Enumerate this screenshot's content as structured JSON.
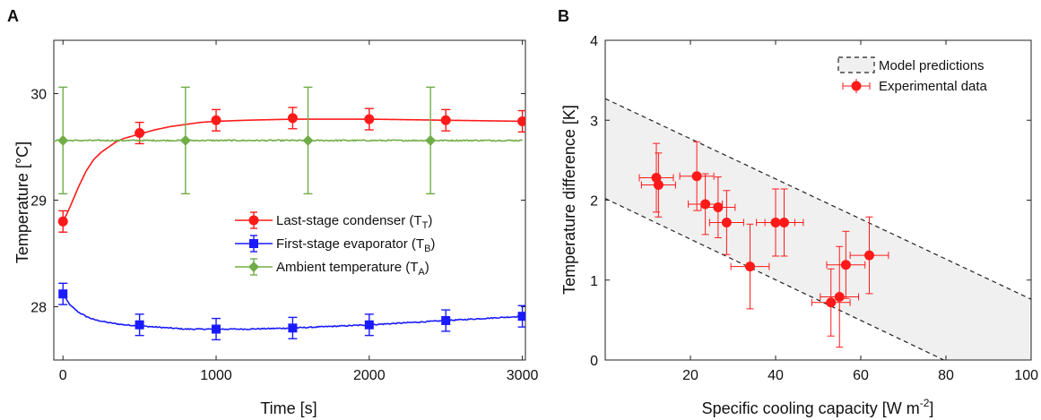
{
  "chart_data": [
    {
      "type": "line",
      "panel_label": "A",
      "title": "",
      "xlabel": "Time [s]",
      "ylabel": "Temperature [°C]",
      "xlim": [
        -60,
        3020
      ],
      "ylim": [
        27.5,
        30.5
      ],
      "xticks": [
        0,
        1000,
        2000,
        3000
      ],
      "yticks": [
        28,
        29,
        30
      ],
      "legend_position": "lower-right",
      "series": [
        {
          "name_main": "Last-stage condenser (T",
          "name_sub": "T",
          "name_tail": ")",
          "color": "#ff1a1a",
          "marker": "circle",
          "curve": {
            "x": [
              0,
              25,
              50,
              100,
              150,
              200,
              250,
              300,
              350,
              400,
              500,
              600,
              700,
              800,
              900,
              1000,
              1200,
              1500,
              1800,
              2000,
              2500,
              3000
            ],
            "y": [
              28.8,
              28.87,
              28.95,
              29.12,
              29.27,
              29.38,
              29.45,
              29.5,
              29.55,
              29.58,
              29.62,
              29.66,
              29.69,
              29.71,
              29.73,
              29.74,
              29.75,
              29.76,
              29.76,
              29.76,
              29.75,
              29.74
            ]
          },
          "points": {
            "x": [
              0,
              500,
              1000,
              1500,
              2000,
              2500,
              3000
            ],
            "y": [
              28.8,
              29.63,
              29.75,
              29.77,
              29.76,
              29.75,
              29.74
            ],
            "err": [
              0.1,
              0.1,
              0.1,
              0.1,
              0.1,
              0.1,
              0.1
            ]
          }
        },
        {
          "name_main": "First-stage evaporator (T",
          "name_sub": "B",
          "name_tail": ")",
          "color": "#1a1aff",
          "marker": "square",
          "curve": {
            "x": [
              0,
              25,
              50,
              100,
              150,
              200,
              300,
              400,
              500,
              600,
              800,
              1000,
              1200,
              1500,
              2000,
              2500,
              3000
            ],
            "y": [
              28.12,
              28.06,
              28.01,
              27.95,
              27.91,
              27.88,
              27.85,
              27.83,
              27.82,
              27.81,
              27.79,
              27.79,
              27.79,
              27.8,
              27.83,
              27.87,
              27.91
            ],
            "noise": 0.01
          },
          "points": {
            "x": [
              0,
              500,
              1000,
              1500,
              2000,
              2500,
              3000
            ],
            "y": [
              28.12,
              27.83,
              27.79,
              27.8,
              27.83,
              27.87,
              27.91
            ],
            "err": [
              0.1,
              0.1,
              0.1,
              0.1,
              0.1,
              0.1,
              0.1
            ]
          }
        },
        {
          "name_main": "Ambient temperature (T",
          "name_sub": "A",
          "name_tail": ")",
          "color": "#70ad47",
          "marker": "diamond",
          "curve": {
            "x": [
              -60,
              3000
            ],
            "y": [
              29.56,
              29.56
            ],
            "noise": 0.012
          },
          "points": {
            "x": [
              0,
              800,
              1600,
              2400
            ],
            "y": [
              29.56,
              29.56,
              29.56,
              29.56
            ],
            "err": [
              0.5,
              0.5,
              0.5,
              0.5
            ]
          }
        }
      ]
    },
    {
      "type": "scatter",
      "panel_label": "B",
      "title": "",
      "xlabel_main": "Specific cooling capacity [W m",
      "xlabel_sup": "-2",
      "xlabel_tail": "]",
      "ylabel": "Temperature difference [K]",
      "xlim": [
        0,
        100
      ],
      "ylim": [
        0,
        4
      ],
      "xticks": [
        20,
        40,
        60,
        80,
        100
      ],
      "xtick_labels": [
        "20",
        "40",
        "60",
        "80",
        "100"
      ],
      "yticks": [
        0,
        1,
        2,
        3,
        4
      ],
      "legend_position": "top-right",
      "band": {
        "name": "Model predictions",
        "upper": {
          "x": [
            0,
            100
          ],
          "y": [
            3.27,
            0.76
          ]
        },
        "lower": {
          "x": [
            0,
            79.5
          ],
          "y": [
            2.02,
            0
          ]
        },
        "fill": "#f0f0f0"
      },
      "data": {
        "name": "Experimental data",
        "color": "#ff1a1a",
        "x": [
          12,
          12.5,
          21.5,
          23.5,
          26.5,
          28.5,
          34,
          40,
          42,
          53,
          55,
          56.5,
          62
        ],
        "y": [
          2.28,
          2.19,
          2.3,
          1.95,
          1.91,
          1.72,
          1.17,
          1.72,
          1.72,
          0.72,
          0.79,
          1.19,
          1.31
        ],
        "xerr": [
          4,
          4,
          4,
          4,
          4,
          4,
          4.5,
          4.5,
          4.5,
          4.5,
          4.5,
          4.5,
          4.5
        ],
        "yerr": [
          0.43,
          0.4,
          0.43,
          0.38,
          0.38,
          0.4,
          0.53,
          0.42,
          0.42,
          0.42,
          0.63,
          0.42,
          0.48
        ]
      }
    }
  ]
}
